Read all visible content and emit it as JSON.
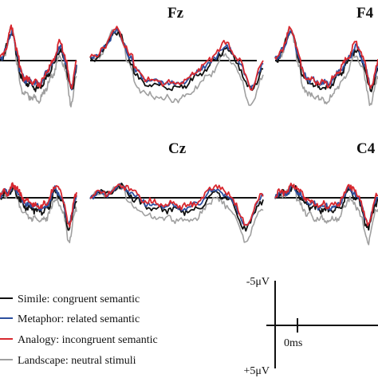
{
  "chart_data": {
    "type": "line",
    "title": "",
    "electrodes": [
      {
        "label": "",
        "row": 0,
        "col": 0
      },
      {
        "label": "Fz",
        "row": 0,
        "col": 1
      },
      {
        "label": "F4",
        "row": 0,
        "col": 2
      },
      {
        "label": "",
        "row": 1,
        "col": 0
      },
      {
        "label": "Cz",
        "row": 1,
        "col": 1
      },
      {
        "label": "C4",
        "row": 1,
        "col": 2
      }
    ],
    "y_axis": {
      "top_label": "-5μV",
      "bottom_label": "+5μV",
      "range_uV": [
        -5,
        5
      ],
      "negative_up": true
    },
    "x_axis": {
      "zero_label": "0ms"
    },
    "series": [
      {
        "name": "Simile: congruent semantic",
        "color": "#111111"
      },
      {
        "name": "Metaphor: related semantic",
        "color": "#2d4f9e"
      },
      {
        "name": "Analogy: incongruent semantic",
        "color": "#d8282f"
      },
      {
        "name": "Landscape: neutral stimuli",
        "color": "#a0a0a0"
      }
    ],
    "grid": false,
    "legend_position": "bottom-left"
  }
}
